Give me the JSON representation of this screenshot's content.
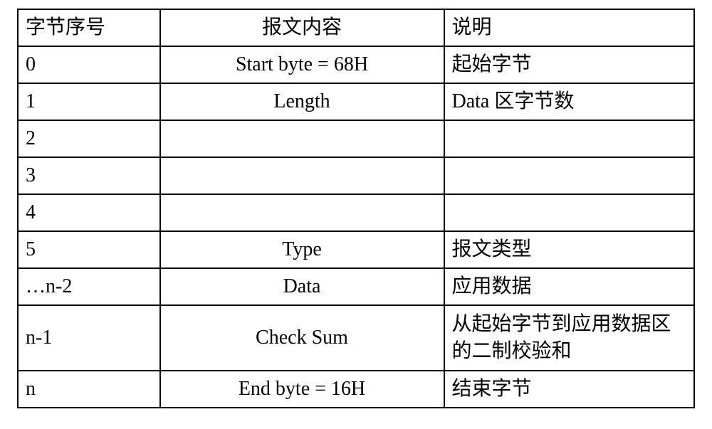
{
  "table": {
    "type": "table",
    "border_color": "#000000",
    "background_color": "#ffffff",
    "text_color": "#000000",
    "font_size_pt": 21,
    "columns": [
      {
        "header": "字节序号",
        "align": "left",
        "width_pct": 21
      },
      {
        "header": "报文内容",
        "align": "center",
        "width_pct": 42
      },
      {
        "header": "说明",
        "align": "left",
        "width_pct": 37
      }
    ],
    "rows": [
      {
        "index": "0",
        "content": "Start byte = 68H",
        "desc": "起始字节"
      },
      {
        "index": "1",
        "content": "Length",
        "desc": "Data 区字节数"
      },
      {
        "index": "2",
        "content": "",
        "desc": ""
      },
      {
        "index": "3",
        "content": "",
        "desc": ""
      },
      {
        "index": "4",
        "content": "",
        "desc": ""
      },
      {
        "index": "5",
        "content": "Type",
        "desc": "报文类型"
      },
      {
        "index": "…n-2",
        "content": "Data",
        "desc": "应用数据"
      },
      {
        "index": "n-1",
        "content": "Check Sum",
        "desc": "从起始字节到应用数据区的二制校验和",
        "tall": true
      },
      {
        "index": "n",
        "content": "End byte = 16H",
        "desc": "结束字节"
      }
    ]
  }
}
